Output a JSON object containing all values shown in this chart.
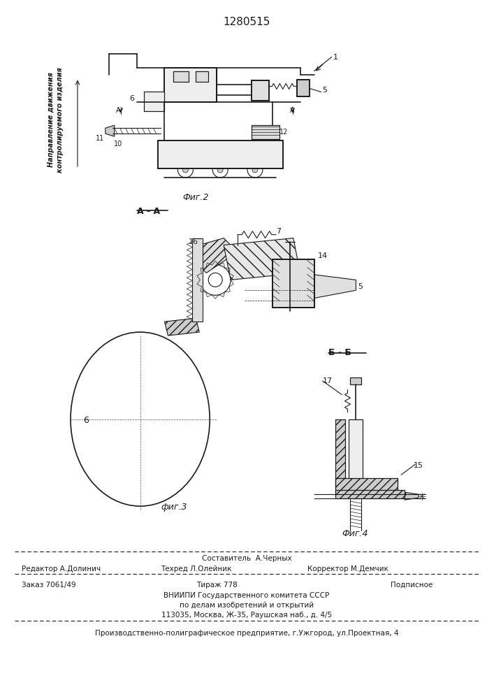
{
  "patent_number": "1280515",
  "background_color": "#ffffff",
  "line_color": "#1a1a1a",
  "fig_width": 7.07,
  "fig_height": 10.0,
  "dpi": 100,
  "fig2_label": "Фиг.2",
  "fig3_label": "фиг.3",
  "fig4_label": "Фиг.4",
  "section_aa": "A - A",
  "section_bb": "Б - Б",
  "vertical_text_1": "Направление движения",
  "vertical_text_2": "контролируемого изделия",
  "editor_line": "Редактор А.Долинич",
  "composer_line": "Составитель  А.Черных",
  "techred_line": "Техред Л.Олейник",
  "corrector_line": "Корректор М.Демчик",
  "order_line": "Заказ 7061/49",
  "tirazh_line": "Тираж 778",
  "podpisnoe_line": "Подписное",
  "vniishi_line": "ВНИИПИ Государственного комитета СССР",
  "dela_line": "по делам изобретений и открытий",
  "address_line": "113035, Москва, Ж-35, Раушская наб., д. 4/5",
  "print_line": "Производственно-полиграфическое предприятие, г.Ужгород, ул.Проектная, 4"
}
